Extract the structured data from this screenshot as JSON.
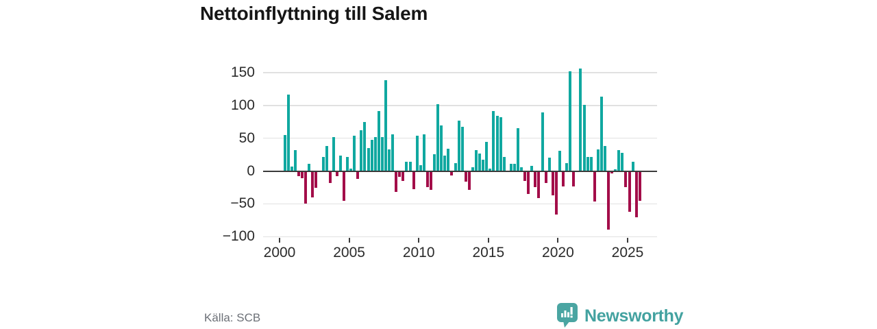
{
  "header": {
    "title": "Nettoinflyttning till Salem"
  },
  "footer": {
    "source_label": "Källa: SCB",
    "brand": {
      "name": "Newsworthy",
      "color": "#43a2a0",
      "icon_color": "#4aa5a2"
    }
  },
  "chart_data": {
    "type": "bar",
    "title": "Nettoinflyttning till Salem",
    "frequency": "quarterly",
    "x_start": {
      "year": 2000,
      "quarter": 1
    },
    "x_end": {
      "year": 2025,
      "quarter": 4
    },
    "values_by_year": {
      "2000": [
        0,
        55,
        117,
        7
      ],
      "2001": [
        32,
        -8,
        -11,
        -50
      ],
      "2002": [
        11,
        -40,
        -25,
        0
      ],
      "2003": [
        22,
        38,
        -18,
        52
      ],
      "2004": [
        -8,
        24,
        -45,
        21
      ],
      "2005": [
        4,
        54,
        -12,
        62
      ],
      "2006": [
        75,
        35,
        48,
        52
      ],
      "2007": [
        91,
        52,
        139,
        33
      ],
      "2008": [
        56,
        -32,
        -9,
        -15
      ],
      "2009": [
        14,
        14,
        -28,
        54
      ],
      "2010": [
        9,
        56,
        -24,
        -29
      ],
      "2011": [
        26,
        102,
        70,
        24
      ],
      "2012": [
        34,
        -7,
        12,
        77
      ],
      "2013": [
        68,
        -16,
        -29,
        6
      ],
      "2014": [
        32,
        27,
        17,
        45
      ],
      "2015": [
        4,
        92,
        84,
        82
      ],
      "2016": [
        22,
        0,
        11,
        11
      ],
      "2017": [
        65,
        6,
        -15,
        -35
      ],
      "2018": [
        8,
        -24,
        -41,
        89
      ],
      "2019": [
        -18,
        20,
        -37,
        -66
      ],
      "2020": [
        31,
        -23,
        12,
        152
      ],
      "2021": [
        -23,
        0,
        156,
        101
      ],
      "2022": [
        22,
        22,
        -46,
        33
      ],
      "2023": [
        113,
        38,
        -89,
        -4
      ],
      "2024": [
        3,
        32,
        28,
        -24
      ],
      "2025": [
        -62,
        14,
        -70,
        -45
      ]
    },
    "yticks": [
      150,
      100,
      50,
      0,
      -50,
      -100
    ],
    "xticks": [
      2000,
      2005,
      2010,
      2015,
      2020,
      2025
    ],
    "ylim": [
      -100,
      160
    ],
    "grid": "horizontal",
    "legend": "none",
    "positive_color": "#10a8a0",
    "negative_color": "#a30d49",
    "zero_line_color": "#3b3b3b",
    "gridline_color": "#e1e1e1"
  }
}
